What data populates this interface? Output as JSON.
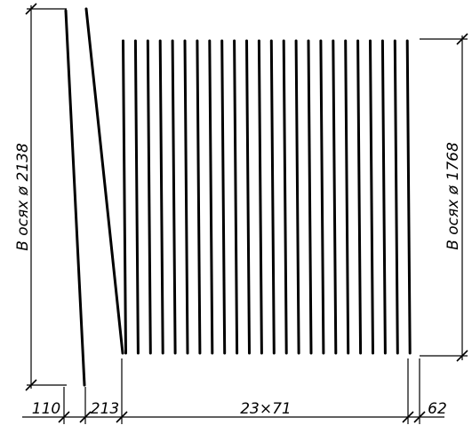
{
  "drawing": {
    "left_dimension": "В осях ø 2138",
    "right_dimension": "В осях ø 1768",
    "bottom_dimensions": [
      "110",
      "213",
      "23×71",
      "62"
    ]
  },
  "colors": {
    "ink": "#000000",
    "background": "#ffffff"
  }
}
